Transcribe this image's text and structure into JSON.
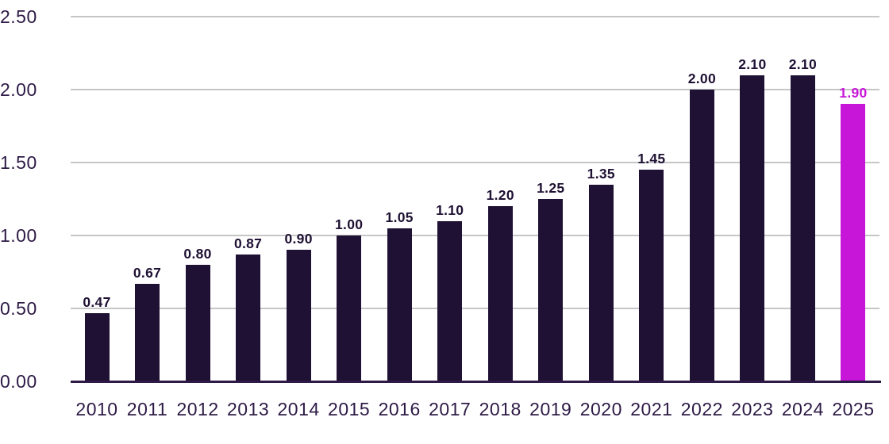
{
  "chart_data": {
    "type": "bar",
    "title": "",
    "xlabel": "",
    "ylabel": "",
    "categories": [
      "2010",
      "2011",
      "2012",
      "2013",
      "2014",
      "2015",
      "2016",
      "2017",
      "2018",
      "2019",
      "2020",
      "2021",
      "2022",
      "2023",
      "2024",
      "2025"
    ],
    "values": [
      0.47,
      0.67,
      0.8,
      0.87,
      0.9,
      1.0,
      1.05,
      1.1,
      1.2,
      1.25,
      1.35,
      1.45,
      2.0,
      2.1,
      2.1,
      1.9
    ],
    "value_labels": [
      "0.47",
      "0.67",
      "0.80",
      "0.87",
      "0.90",
      "1.00",
      "1.05",
      "1.10",
      "1.20",
      "1.25",
      "1.35",
      "1.45",
      "2.00",
      "2.10",
      "2.10",
      "1.90"
    ],
    "highlight_index": 15,
    "ylim": [
      0,
      2.5
    ],
    "yticks": [
      "0.00",
      "0.50",
      "1.00",
      "1.50",
      "2.00",
      "2.50"
    ],
    "grid": true,
    "legend": false,
    "colors": {
      "bar": "#1f1133",
      "highlight_bar": "#c716d8",
      "axis_text": "#2d1a46",
      "value_text": "#1f1133",
      "highlight_value_text": "#c716d8",
      "gridline": "#c6c6c6",
      "axis_line": "#2d1a46",
      "background": "#ffffff"
    }
  }
}
